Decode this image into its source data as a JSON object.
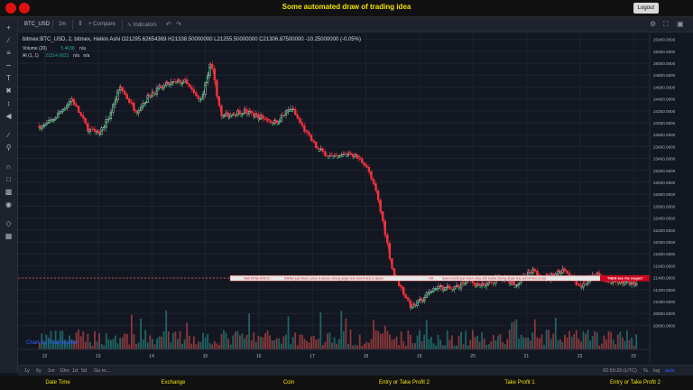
{
  "title": "Some automated draw of trading idea",
  "logout_label": "Logout",
  "toolbar": {
    "symbol": "BTC_USD",
    "interval": "2m",
    "compare": "Compare",
    "indicators": "Indicators"
  },
  "legend": {
    "symbol_line": "bitmex:BTC_USD, 2, bitmex, Heikin Ashi",
    "ohlc": "O21295.62654369  H21338.50000000  L21255.50000000  C21306.87500000  -10.25000000 (-0.05%)",
    "volume_label": "Volume (20)",
    "volume_value": "5.4638",
    "volume_na": "n/a",
    "ai_label": "AI (1, 1)",
    "ai_value": "21314.0621",
    "ai_na1": "n/a",
    "ai_na2": "n/a"
  },
  "annotations": {
    "banner_1": "Wait till flip ENDS !",
    "banner_2": "DRAW just when: price is above strong angle line and AI line is green",
    "banner_3": "OR",
    "banner_4": "draw shorts just when price still below strong angle line and AI line is red",
    "banner_5": "THEN See the magic!!",
    "price_tag": "21391.58436644",
    "current_price": "21321.65277872",
    "watermark": "Chart by TradingView"
  },
  "timeframes": [
    "1y",
    "6y",
    "1m",
    "10m",
    "1d",
    "5d",
    "Go to..."
  ],
  "status": {
    "time": "02:50:20 (UTC)",
    "percent": "%",
    "log": "log",
    "auto": "auto"
  },
  "footer_columns": [
    "Date Time",
    "Exchange",
    "Coin",
    "Entry or Take Profit 2",
    "Take Profit 1",
    "Entry or Take Profit 2"
  ],
  "chart_data": {
    "type": "candlestick",
    "style": "Heikin Ashi",
    "x_ticks": [
      "12",
      "13",
      "14",
      "15",
      "16",
      "17",
      "18",
      "19",
      "20",
      "21",
      "22",
      "23"
    ],
    "y_ticks": [
      "25400.000000",
      "25200.000000",
      "25000.000000",
      "24800.000000",
      "24600.000000",
      "24400.000000",
      "24200.000000",
      "24000.000000",
      "23800.000000",
      "23600.000000",
      "23400.000000",
      "23200.000000",
      "23000.000000",
      "22800.000000",
      "22600.000000",
      "22400.000000",
      "22200.000000",
      "22000.000000",
      "21800.000000",
      "21600.000000",
      "21400.000000",
      "21200.000000",
      "21000.000000",
      "20800.000000",
      "20600.000000"
    ],
    "ylim": [
      20500,
      25500
    ],
    "price_path": [
      [
        12.0,
        23950
      ],
      [
        12.2,
        24100
      ],
      [
        12.5,
        24400
      ],
      [
        12.8,
        23900
      ],
      [
        13.0,
        23800
      ],
      [
        13.2,
        24100
      ],
      [
        13.4,
        24600
      ],
      [
        13.7,
        24200
      ],
      [
        14.0,
        24500
      ],
      [
        14.3,
        24650
      ],
      [
        14.6,
        24700
      ],
      [
        14.9,
        24350
      ],
      [
        15.0,
        24650
      ],
      [
        15.1,
        25000
      ],
      [
        15.3,
        24100
      ],
      [
        15.7,
        24200
      ],
      [
        16.0,
        24100
      ],
      [
        16.3,
        24000
      ],
      [
        16.6,
        24250
      ],
      [
        16.9,
        23800
      ],
      [
        17.1,
        23550
      ],
      [
        17.4,
        23400
      ],
      [
        17.7,
        23500
      ],
      [
        18.0,
        23300
      ],
      [
        18.2,
        22800
      ],
      [
        18.35,
        22200
      ],
      [
        18.5,
        21500
      ],
      [
        18.7,
        21150
      ],
      [
        18.85,
        20900
      ],
      [
        19.0,
        21000
      ],
      [
        19.3,
        21250
      ],
      [
        19.6,
        21200
      ],
      [
        19.9,
        21350
      ],
      [
        20.2,
        21250
      ],
      [
        20.5,
        21400
      ],
      [
        20.8,
        21300
      ],
      [
        21.1,
        21500
      ],
      [
        21.4,
        21400
      ],
      [
        21.7,
        21550
      ],
      [
        22.0,
        21250
      ],
      [
        22.3,
        21450
      ],
      [
        22.5,
        21320
      ]
    ],
    "series": [
      {
        "name": "Volume (20)",
        "type": "volume"
      },
      {
        "name": "AI (1, 1)",
        "type": "line"
      }
    ]
  }
}
